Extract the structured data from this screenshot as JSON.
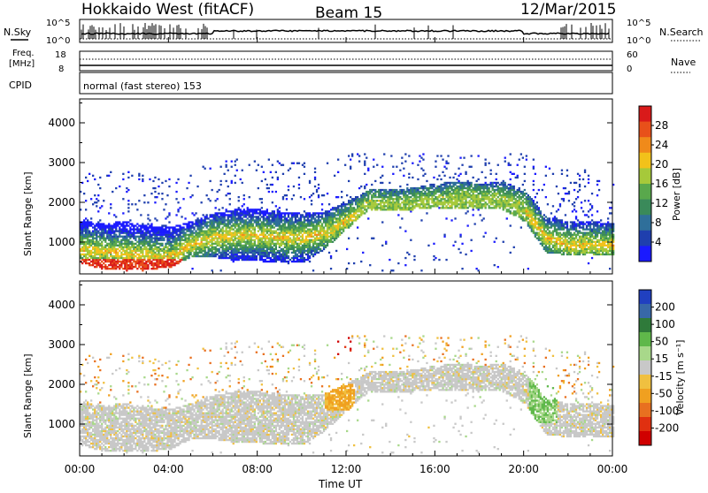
{
  "header": {
    "title": "Hokkaido West (fitACF)",
    "beam": "Beam 15",
    "date": "12/Mar/2015"
  },
  "noise_panel": {
    "left_label": "N.Sky",
    "tick_top": "10^5",
    "tick_bottom": "10^0",
    "right_tick_top": "10^5",
    "right_tick_bottom": "10^0",
    "right_label": "N.Search"
  },
  "freq_panel": {
    "left_label_1": "Freq.",
    "left_label_2": "[MHz]",
    "tick_top": "18",
    "tick_bottom": "8",
    "right_tick_top": "60",
    "right_tick_bottom": "0",
    "right_label": "Nave"
  },
  "cpid_panel": {
    "left_label": "CPID",
    "mode_text": "normal (fast stereo) 153"
  },
  "colors": {
    "power_scale": [
      "#1a1aff",
      "#1f3fae",
      "#2f6f9a",
      "#3a8a5a",
      "#59a84c",
      "#a6c93a",
      "#f2c21a",
      "#f08a1a",
      "#e8501a",
      "#d91a1a"
    ],
    "velocity_scale": [
      "#2040c0",
      "#3868a8",
      "#2f7a3a",
      "#5fb84a",
      "#a8d88a",
      "#c8c8c8",
      "#f0c040",
      "#f0a020",
      "#e87020",
      "#e03010",
      "#d00000"
    ]
  },
  "chart_data": [
    {
      "type": "heatmap",
      "name": "power",
      "x": [
        "00:00",
        "04:00",
        "08:00",
        "12:00",
        "16:00",
        "20:00",
        "00:00"
      ],
      "xlim": [
        0,
        24
      ],
      "ylabel": "Slant Range [km]",
      "yticks": [
        "1000",
        "2000",
        "3000",
        "4000"
      ],
      "ylim": [
        200,
        4600
      ],
      "colorbar": {
        "label": "Power [dB]",
        "ticks": [
          "4",
          "8",
          "12",
          "16",
          "20",
          "24",
          "28"
        ],
        "range": [
          0,
          30
        ]
      },
      "echo_band": [
        {
          "t": 0.0,
          "lo": 450,
          "hi": 1500,
          "peak": 800
        },
        {
          "t": 1.0,
          "lo": 300,
          "hi": 1450,
          "peak": 750
        },
        {
          "t": 2.0,
          "lo": 300,
          "hi": 1500,
          "peak": 700
        },
        {
          "t": 3.0,
          "lo": 300,
          "hi": 1400,
          "peak": 650
        },
        {
          "t": 4.0,
          "lo": 320,
          "hi": 1350,
          "peak": 600
        },
        {
          "t": 5.0,
          "lo": 600,
          "hi": 1500,
          "peak": 900
        },
        {
          "t": 6.0,
          "lo": 600,
          "hi": 1700,
          "peak": 1100
        },
        {
          "t": 7.0,
          "lo": 500,
          "hi": 1800,
          "peak": 1150
        },
        {
          "t": 8.0,
          "lo": 500,
          "hi": 1800,
          "peak": 1150
        },
        {
          "t": 9.0,
          "lo": 450,
          "hi": 1750,
          "peak": 1100
        },
        {
          "t": 10.0,
          "lo": 450,
          "hi": 1700,
          "peak": 1100
        },
        {
          "t": 11.0,
          "lo": 800,
          "hi": 1750,
          "peak": 1200
        },
        {
          "t": 12.0,
          "lo": 1300,
          "hi": 2000,
          "peak": 1500
        },
        {
          "t": 13.0,
          "lo": 1800,
          "hi": 2300,
          "peak": 1900
        },
        {
          "t": 14.0,
          "lo": 1750,
          "hi": 2300,
          "peak": 1850
        },
        {
          "t": 15.0,
          "lo": 1800,
          "hi": 2350,
          "peak": 1900
        },
        {
          "t": 16.0,
          "lo": 1850,
          "hi": 2450,
          "peak": 1950
        },
        {
          "t": 17.0,
          "lo": 1800,
          "hi": 2500,
          "peak": 2050
        },
        {
          "t": 18.0,
          "lo": 1800,
          "hi": 2450,
          "peak": 2000
        },
        {
          "t": 19.0,
          "lo": 1800,
          "hi": 2500,
          "peak": 2000
        },
        {
          "t": 20.0,
          "lo": 1500,
          "hi": 2300,
          "peak": 1800
        },
        {
          "t": 21.0,
          "lo": 700,
          "hi": 1600,
          "peak": 1100
        },
        {
          "t": 22.0,
          "lo": 650,
          "hi": 1500,
          "peak": 900
        },
        {
          "t": 23.0,
          "lo": 650,
          "hi": 1500,
          "peak": 900
        },
        {
          "t": 24.0,
          "lo": 650,
          "hi": 1450,
          "peak": 900
        }
      ]
    },
    {
      "type": "heatmap",
      "name": "velocity",
      "x": [
        "00:00",
        "04:00",
        "08:00",
        "12:00",
        "16:00",
        "20:00",
        "00:00"
      ],
      "xlim": [
        0,
        24
      ],
      "xlabel": "Time UT",
      "ylabel": "Slant Range [km]",
      "yticks": [
        "1000",
        "2000",
        "3000",
        "4000"
      ],
      "ylim": [
        200,
        4600
      ],
      "colorbar": {
        "label": "Velocity [m s⁻¹]",
        "ticks": [
          "200",
          "100",
          "50",
          "15",
          "-15",
          "-50",
          "-100",
          "-200"
        ],
        "range": [
          -250,
          250
        ]
      }
    }
  ]
}
